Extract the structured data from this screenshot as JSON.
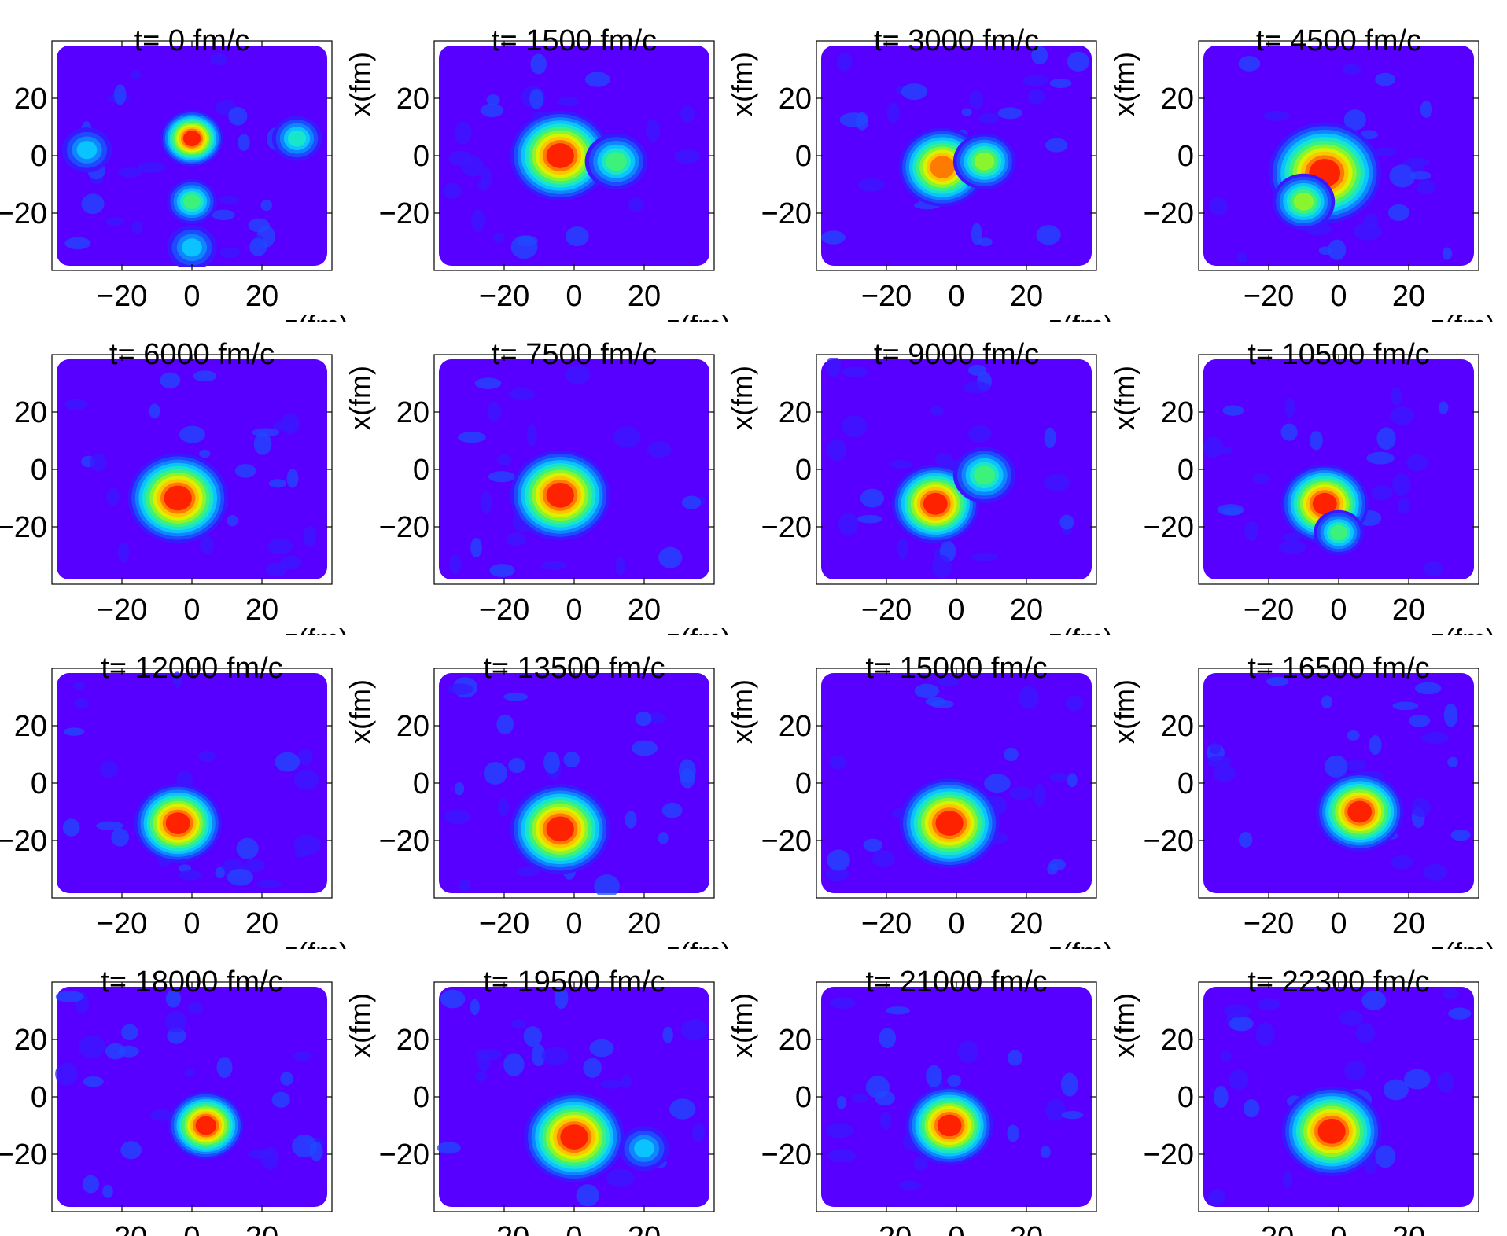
{
  "chart_data": {
    "type": "heatmap",
    "layout": "4x4 small multiples",
    "xlabel": "z(fm)",
    "ylabel": "x(fm)",
    "xlim": [
      -40,
      40
    ],
    "ylim": [
      -40,
      40
    ],
    "xticks": [
      -20,
      0,
      20
    ],
    "yticks": [
      20,
      0,
      -20
    ],
    "colormap": [
      "#5800ff",
      "#3a18ff",
      "#1f4bff",
      "#0f86ff",
      "#0bc4ff",
      "#19e6c8",
      "#3cf27a",
      "#8af52e",
      "#d8f200",
      "#ffc400",
      "#ff7a00",
      "#ff2200"
    ],
    "panels": [
      {
        "title": "t= 0 fm/c",
        "blobs": [
          {
            "z": 0,
            "x": 6,
            "peak": 1.0,
            "sigma": 5
          },
          {
            "z": 0,
            "x": -16,
            "peak": 0.55,
            "sigma": 4
          },
          {
            "z": 0,
            "x": -32,
            "peak": 0.4,
            "sigma": 4
          },
          {
            "z": -30,
            "x": 2,
            "peak": 0.4,
            "sigma": 4
          },
          {
            "z": 30,
            "x": 6,
            "peak": 0.45,
            "sigma": 4
          }
        ]
      },
      {
        "title": "t= 1500 fm/c",
        "blobs": [
          {
            "z": -4,
            "x": 0,
            "peak": 1.0,
            "sigma": 8
          },
          {
            "z": 12,
            "x": -2,
            "peak": 0.55,
            "sigma": 5
          }
        ]
      },
      {
        "title": "t= 3000 fm/c",
        "blobs": [
          {
            "z": -4,
            "x": -4,
            "peak": 0.9,
            "sigma": 7
          },
          {
            "z": 8,
            "x": -2,
            "peak": 0.6,
            "sigma": 5
          }
        ]
      },
      {
        "title": "t= 4500 fm/c",
        "blobs": [
          {
            "z": -4,
            "x": -6,
            "peak": 1.0,
            "sigma": 9
          },
          {
            "z": -10,
            "x": -16,
            "peak": 0.6,
            "sigma": 5
          }
        ]
      },
      {
        "title": "t= 6000 fm/c",
        "blobs": [
          {
            "z": -4,
            "x": -10,
            "peak": 1.0,
            "sigma": 8
          }
        ]
      },
      {
        "title": "t= 7500 fm/c",
        "blobs": [
          {
            "z": -4,
            "x": -9,
            "peak": 1.0,
            "sigma": 8
          }
        ]
      },
      {
        "title": "t= 9000 fm/c",
        "blobs": [
          {
            "z": -6,
            "x": -12,
            "peak": 1.0,
            "sigma": 7
          },
          {
            "z": 8,
            "x": -2,
            "peak": 0.55,
            "sigma": 5
          }
        ]
      },
      {
        "title": "t= 10500 fm/c",
        "blobs": [
          {
            "z": -4,
            "x": -12,
            "peak": 1.0,
            "sigma": 7
          },
          {
            "z": 0,
            "x": -22,
            "peak": 0.5,
            "sigma": 4
          }
        ]
      },
      {
        "title": "t= 12000 fm/c",
        "blobs": [
          {
            "z": -4,
            "x": -14,
            "peak": 1.0,
            "sigma": 7
          }
        ]
      },
      {
        "title": "t= 13500 fm/c",
        "blobs": [
          {
            "z": -4,
            "x": -16,
            "peak": 1.0,
            "sigma": 8
          }
        ]
      },
      {
        "title": "t= 15000 fm/c",
        "blobs": [
          {
            "z": -2,
            "x": -14,
            "peak": 1.0,
            "sigma": 8
          }
        ]
      },
      {
        "title": "t= 16500 fm/c",
        "blobs": [
          {
            "z": 6,
            "x": -10,
            "peak": 1.0,
            "sigma": 7
          }
        ]
      },
      {
        "title": "t= 18000 fm/c",
        "blobs": [
          {
            "z": 4,
            "x": -10,
            "peak": 1.0,
            "sigma": 6
          }
        ]
      },
      {
        "title": "t= 19500 fm/c",
        "blobs": [
          {
            "z": 0,
            "x": -14,
            "peak": 1.0,
            "sigma": 8
          },
          {
            "z": 20,
            "x": -18,
            "peak": 0.4,
            "sigma": 4
          }
        ]
      },
      {
        "title": "t= 21000 fm/c",
        "blobs": [
          {
            "z": -2,
            "x": -10,
            "peak": 1.0,
            "sigma": 7
          }
        ]
      },
      {
        "title": "t= 22300 fm/c",
        "blobs": [
          {
            "z": -2,
            "x": -12,
            "peak": 1.0,
            "sigma": 8
          }
        ]
      }
    ]
  }
}
